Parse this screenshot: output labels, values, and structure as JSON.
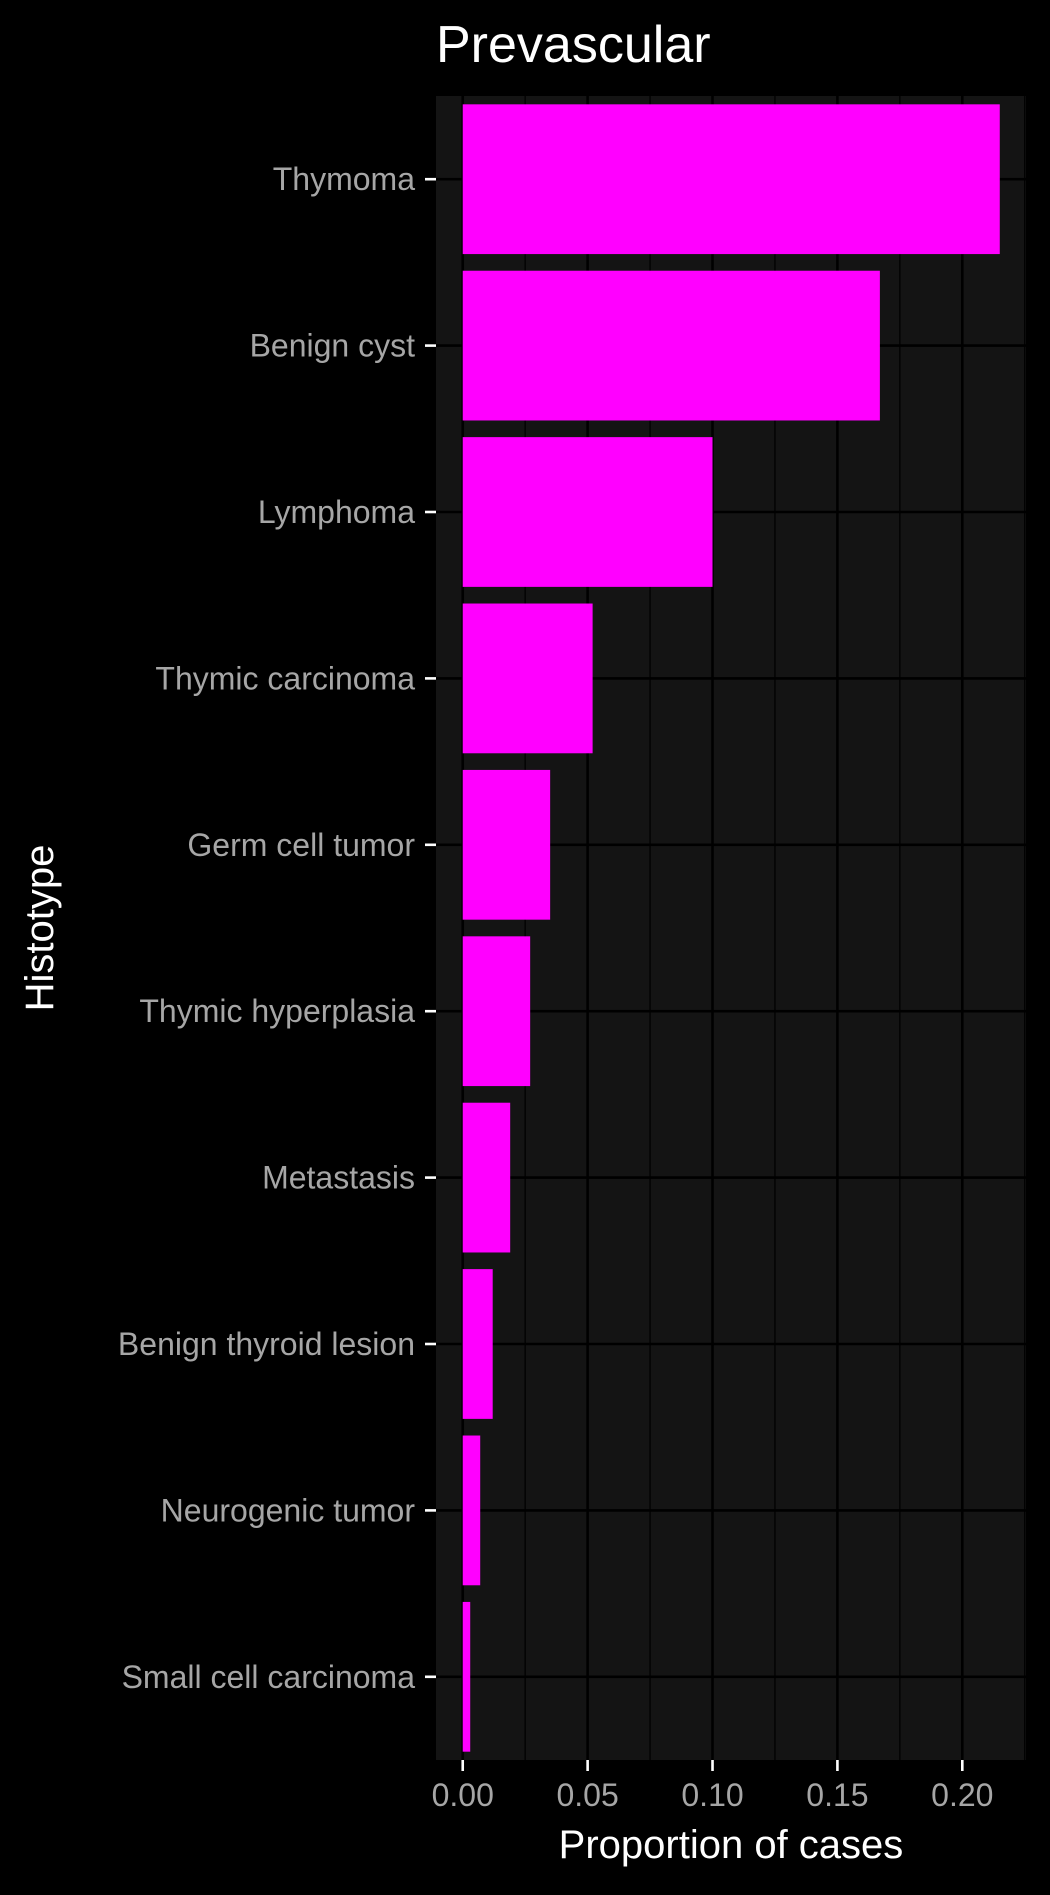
{
  "chart_data": {
    "type": "bar",
    "orientation": "horizontal",
    "title": "Prevascular",
    "xlabel": "Proportion of cases",
    "ylabel": "Histotype",
    "categories": [
      "Thymoma",
      "Benign cyst",
      "Lymphoma",
      "Thymic carcinoma",
      "Germ cell tumor",
      "Thymic hyperplasia",
      "Metastasis",
      "Benign thyroid lesion",
      "Neurogenic tumor",
      "Small cell carcinoma"
    ],
    "values": [
      0.215,
      0.167,
      0.1,
      0.052,
      0.035,
      0.027,
      0.019,
      0.012,
      0.007,
      0.003
    ],
    "xlim": [
      -0.0107,
      0.2255
    ],
    "xticks": [
      0.0,
      0.05,
      0.1,
      0.15,
      0.2
    ],
    "xtick_labels": [
      "0.00",
      "0.05",
      "0.10",
      "0.15",
      "0.20"
    ],
    "grid": true,
    "legend": "none",
    "colors": {
      "background": "#000000",
      "panel": "#141414",
      "bar": "#FF00FF",
      "gridline": "#000000",
      "text": "#FFFFFF",
      "tick_text": "#A6A6A6",
      "tick_mark": "#FFFFFF"
    }
  }
}
